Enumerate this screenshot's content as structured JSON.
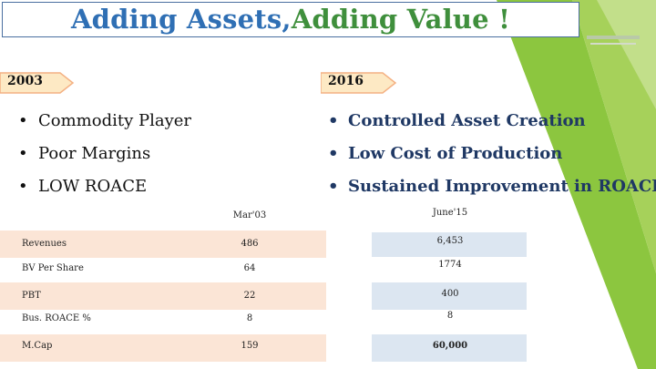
{
  "header": {
    "title_part1": "Adding Assets,",
    "title_part2": "Adding Value !"
  },
  "tags": {
    "left": "2003",
    "right": "2016"
  },
  "left_bullets": [
    "Commodity Player",
    "Poor Margins",
    "LOW ROACE"
  ],
  "right_bullets": [
    "Controlled Asset Creation",
    "Low Cost of Production",
    "Sustained Improvement in ROACE"
  ],
  "table": {
    "col_mar": "Mar'03",
    "col_june": "June'15",
    "rows": [
      {
        "label": "Revenues",
        "mar": "486",
        "june": "6,453"
      },
      {
        "label": "BV Per Share",
        "mar": "64",
        "june": "1774"
      },
      {
        "label": "PBT",
        "mar": "22",
        "june": "400"
      },
      {
        "label": "Bus. ROACE %",
        "mar": "8",
        "june": "8"
      },
      {
        "label": "M.Cap",
        "mar": "159",
        "june": "60,000"
      }
    ]
  },
  "colors": {
    "accent_green": "#8cc63f",
    "blue_title": "#2f6fb4",
    "green_title": "#3f8f3c"
  }
}
